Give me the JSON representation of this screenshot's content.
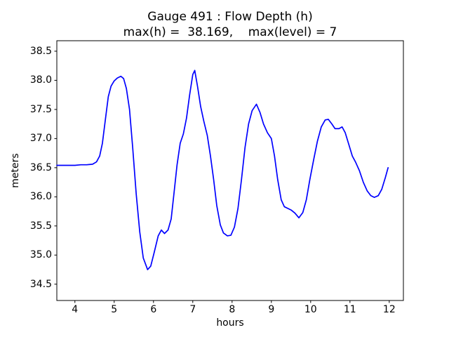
{
  "chart_data": {
    "type": "line",
    "title": "Gauge 491 : Flow Depth (h)",
    "subtitle": "max(h) =  38.169,    max(level) = 7",
    "xlabel": "hours",
    "ylabel": "meters",
    "xlim": [
      3.54,
      12.36
    ],
    "ylim": [
      34.22,
      38.68
    ],
    "x_ticks": [
      4,
      5,
      6,
      7,
      8,
      9,
      10,
      11,
      12
    ],
    "y_ticks": [
      34.5,
      35.0,
      35.5,
      36.0,
      36.5,
      37.0,
      37.5,
      38.0,
      38.5
    ],
    "grid": false,
    "legend": null,
    "line_color": "#0000ff",
    "axes_color": "#000000",
    "background_color": "#ffffff",
    "max_h": 38.169,
    "max_level": 7,
    "series": [
      {
        "name": "h",
        "points": [
          [
            3.54,
            36.54
          ],
          [
            3.7,
            36.54
          ],
          [
            3.85,
            36.54
          ],
          [
            4.0,
            36.54
          ],
          [
            4.15,
            36.55
          ],
          [
            4.3,
            36.55
          ],
          [
            4.45,
            36.56
          ],
          [
            4.55,
            36.6
          ],
          [
            4.63,
            36.7
          ],
          [
            4.7,
            36.92
          ],
          [
            4.78,
            37.35
          ],
          [
            4.85,
            37.72
          ],
          [
            4.92,
            37.9
          ],
          [
            5.0,
            37.99
          ],
          [
            5.08,
            38.04
          ],
          [
            5.17,
            38.07
          ],
          [
            5.24,
            38.03
          ],
          [
            5.31,
            37.86
          ],
          [
            5.39,
            37.5
          ],
          [
            5.47,
            36.85
          ],
          [
            5.56,
            36.05
          ],
          [
            5.65,
            35.4
          ],
          [
            5.74,
            34.95
          ],
          [
            5.85,
            34.75
          ],
          [
            5.93,
            34.81
          ],
          [
            6.02,
            35.05
          ],
          [
            6.12,
            35.33
          ],
          [
            6.2,
            35.43
          ],
          [
            6.28,
            35.37
          ],
          [
            6.37,
            35.43
          ],
          [
            6.45,
            35.62
          ],
          [
            6.52,
            36.05
          ],
          [
            6.6,
            36.55
          ],
          [
            6.68,
            36.92
          ],
          [
            6.76,
            37.08
          ],
          [
            6.84,
            37.35
          ],
          [
            6.92,
            37.75
          ],
          [
            7.0,
            38.1
          ],
          [
            7.05,
            38.17
          ],
          [
            7.12,
            37.9
          ],
          [
            7.2,
            37.55
          ],
          [
            7.28,
            37.3
          ],
          [
            7.37,
            37.05
          ],
          [
            7.45,
            36.7
          ],
          [
            7.53,
            36.3
          ],
          [
            7.61,
            35.85
          ],
          [
            7.7,
            35.52
          ],
          [
            7.78,
            35.38
          ],
          [
            7.88,
            35.33
          ],
          [
            7.97,
            35.34
          ],
          [
            8.06,
            35.48
          ],
          [
            8.15,
            35.8
          ],
          [
            8.24,
            36.3
          ],
          [
            8.33,
            36.85
          ],
          [
            8.42,
            37.25
          ],
          [
            8.51,
            37.48
          ],
          [
            8.62,
            37.59
          ],
          [
            8.71,
            37.45
          ],
          [
            8.8,
            37.25
          ],
          [
            8.9,
            37.1
          ],
          [
            9.0,
            37.0
          ],
          [
            9.08,
            36.7
          ],
          [
            9.16,
            36.3
          ],
          [
            9.25,
            35.95
          ],
          [
            9.33,
            35.83
          ],
          [
            9.42,
            35.8
          ],
          [
            9.51,
            35.77
          ],
          [
            9.6,
            35.72
          ],
          [
            9.7,
            35.64
          ],
          [
            9.8,
            35.73
          ],
          [
            9.89,
            35.95
          ],
          [
            9.98,
            36.3
          ],
          [
            10.08,
            36.65
          ],
          [
            10.17,
            36.95
          ],
          [
            10.27,
            37.2
          ],
          [
            10.37,
            37.32
          ],
          [
            10.45,
            37.33
          ],
          [
            10.54,
            37.25
          ],
          [
            10.62,
            37.17
          ],
          [
            10.72,
            37.17
          ],
          [
            10.8,
            37.2
          ],
          [
            10.88,
            37.1
          ],
          [
            10.97,
            36.9
          ],
          [
            11.06,
            36.7
          ],
          [
            11.14,
            36.6
          ],
          [
            11.24,
            36.45
          ],
          [
            11.34,
            36.25
          ],
          [
            11.44,
            36.1
          ],
          [
            11.53,
            36.02
          ],
          [
            11.62,
            35.99
          ],
          [
            11.72,
            36.02
          ],
          [
            11.81,
            36.13
          ],
          [
            11.9,
            36.33
          ],
          [
            11.97,
            36.5
          ]
        ]
      }
    ]
  }
}
